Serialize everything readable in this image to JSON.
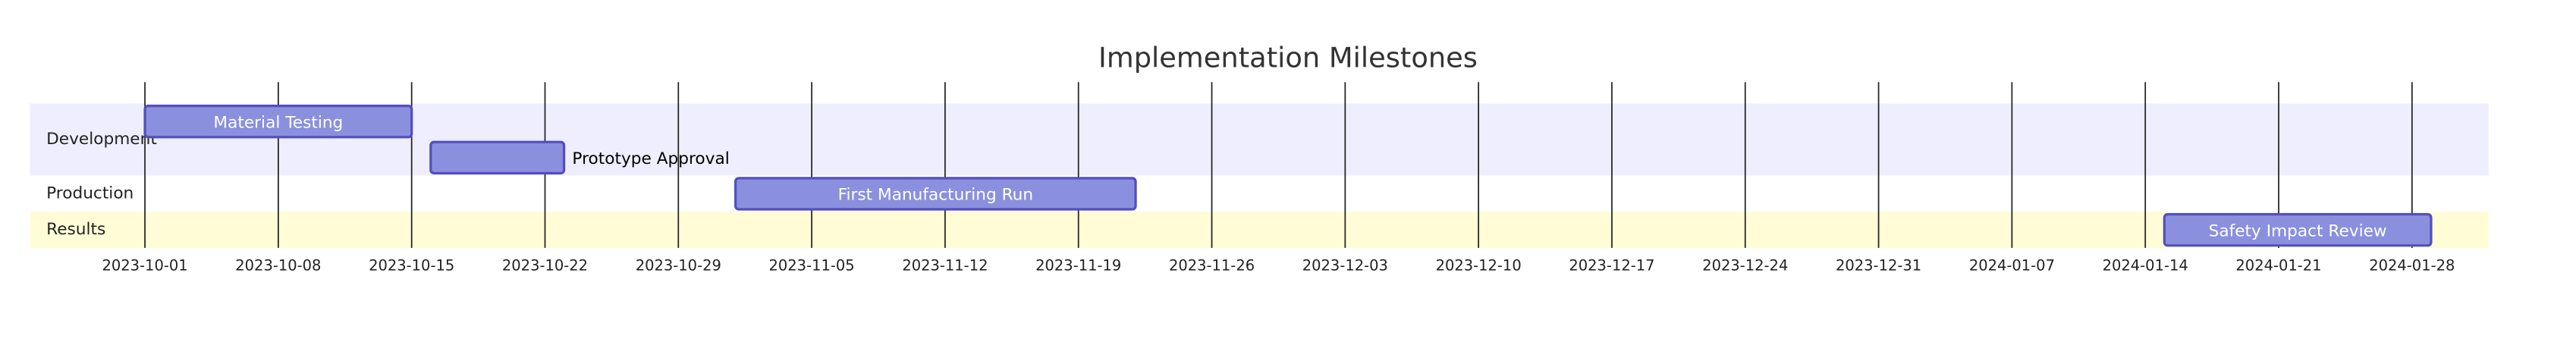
{
  "chart_data": {
    "type": "gantt",
    "title": "Implementation Milestones",
    "sections": [
      {
        "name": "Development",
        "color": "#eeeeff"
      },
      {
        "name": "Production",
        "color": "#ffffff"
      },
      {
        "name": "Results",
        "color": "#fffcd6"
      }
    ],
    "tasks": [
      {
        "name": "Material Testing",
        "section": 0,
        "start": "2023-10-01",
        "end": "2023-10-15"
      },
      {
        "name": "Prototype Approval",
        "section": 0,
        "start": "2023-10-16",
        "end": "2023-10-23"
      },
      {
        "name": "First Manufacturing Run",
        "section": 1,
        "start": "2023-11-01",
        "end": "2023-11-22"
      },
      {
        "name": "Safety Impact Review",
        "section": 2,
        "start": "2024-01-15",
        "end": "2024-01-29"
      }
    ],
    "color": "#8a90dd",
    "border_color": "#534fbc",
    "xlim": [
      "2023-10-01",
      "2024-01-29"
    ],
    "xticks": [
      "2023-10-01",
      "2023-10-08",
      "2023-10-15",
      "2023-10-22",
      "2023-10-29",
      "2023-11-05",
      "2023-11-12",
      "2023-11-19",
      "2023-11-26",
      "2023-12-03",
      "2023-12-10",
      "2023-12-17",
      "2023-12-24",
      "2023-12-31",
      "2024-01-07",
      "2024-01-14",
      "2024-01-21",
      "2024-01-28"
    ],
    "grid": true
  }
}
